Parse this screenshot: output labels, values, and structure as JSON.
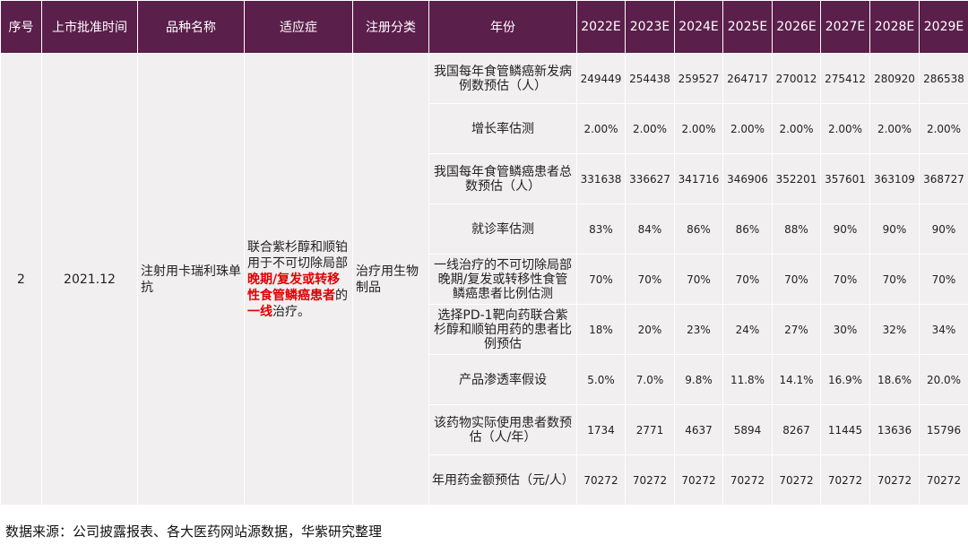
{
  "table": {
    "columns": [
      "序号",
      "上市批准时间",
      "品种名称",
      "适应症",
      "注册分类",
      "年份",
      "2022E",
      "2023E",
      "2024E",
      "2025E",
      "2026E",
      "2027E",
      "2028E",
      "2029E"
    ],
    "product": {
      "seq": "2",
      "date": "2021.12",
      "name": "注射用卡瑞利珠单抗",
      "indication": [
        {
          "text": "联合紫杉醇和顺铂用于不可切除局部",
          "emphasis": false
        },
        {
          "text": "晚期/复发或转移性食管鳞癌患者",
          "emphasis": true
        },
        {
          "text": "的",
          "emphasis": false
        },
        {
          "text": "一线",
          "emphasis": true
        },
        {
          "text": "治疗。",
          "emphasis": false
        }
      ],
      "category": "治疗用生物制品"
    },
    "metrics": [
      {
        "label": "我国每年食管鳞癌新发病例数预估（人）",
        "values": [
          "249449",
          "254438",
          "259527",
          "264717",
          "270012",
          "275412",
          "280920",
          "286538"
        ]
      },
      {
        "label": "增长率估测",
        "values": [
          "2.00%",
          "2.00%",
          "2.00%",
          "2.00%",
          "2.00%",
          "2.00%",
          "2.00%",
          "2.00%"
        ]
      },
      {
        "label": "我国每年食管鳞癌患者总数预估（人）",
        "values": [
          "331638",
          "336627",
          "341716",
          "346906",
          "352201",
          "357601",
          "363109",
          "368727"
        ]
      },
      {
        "label": "就诊率估测",
        "values": [
          "83%",
          "84%",
          "86%",
          "86%",
          "88%",
          "90%",
          "90%",
          "90%"
        ]
      },
      {
        "label": "一线治疗的不可切除局部晚期/复发或转移性食管鳞癌患者比例估测",
        "values": [
          "70%",
          "70%",
          "70%",
          "70%",
          "70%",
          "70%",
          "70%",
          "70%"
        ]
      },
      {
        "label": "选择PD-1靶向药联合紫杉醇和顺铂用药的患者比例预估",
        "values": [
          "18%",
          "20%",
          "23%",
          "24%",
          "27%",
          "30%",
          "32%",
          "34%"
        ]
      },
      {
        "label": "产品渗透率假设",
        "values": [
          "5.0%",
          "7.0%",
          "9.8%",
          "11.8%",
          "14.1%",
          "16.9%",
          "18.6%",
          "20.0%"
        ]
      },
      {
        "label": "该药物实际使用患者数预估（人/年）",
        "values": [
          "1734",
          "2771",
          "4637",
          "5894",
          "8267",
          "11445",
          "13636",
          "15796"
        ]
      },
      {
        "label": "年用药金额预估（元/人）",
        "values": [
          "70272",
          "70272",
          "70272",
          "70272",
          "70272",
          "70272",
          "70272",
          "70272"
        ]
      }
    ]
  },
  "source": "数据来源：公司披露报表、各大医药网站源数据，华紫研究整理"
}
